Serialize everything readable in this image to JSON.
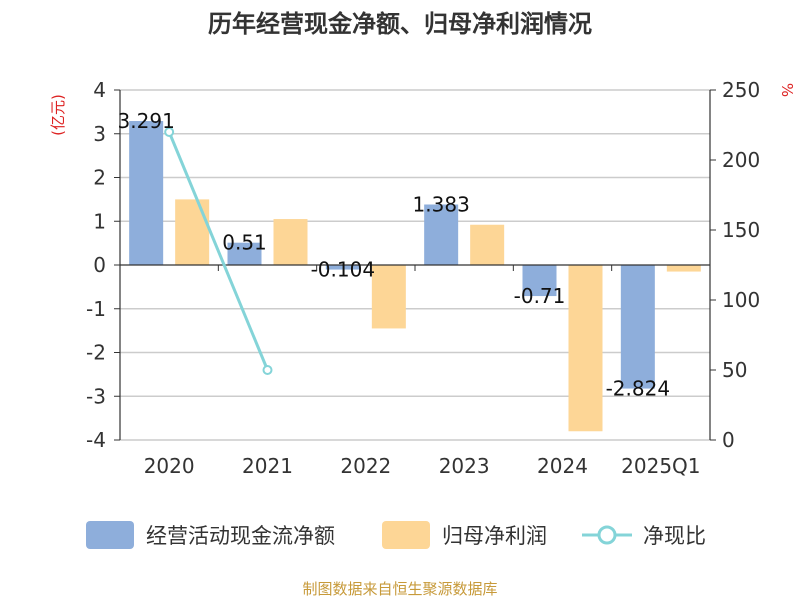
{
  "chart_data": {
    "type": "bar",
    "title": "历年经营现金净额、归母净利润情况",
    "categories": [
      "2020",
      "2021",
      "2022",
      "2023",
      "2024",
      "2025Q1"
    ],
    "y_left": {
      "label": "(亿元)",
      "min": -4,
      "max": 4,
      "ticks": [
        "4",
        "3",
        "2",
        "1",
        "0",
        "-1",
        "-2",
        "-3",
        "-4"
      ]
    },
    "y_right": {
      "label": "%",
      "min": 0,
      "max": 250,
      "ticks": [
        "250",
        "200",
        "150",
        "100",
        "50",
        "0"
      ]
    },
    "series": [
      {
        "name": "经营活动现金流净额",
        "type": "bar",
        "color": "#8eaedb",
        "values": [
          3.291,
          0.51,
          -0.104,
          1.383,
          -0.71,
          -2.824
        ],
        "labels": [
          "3.291",
          "0.51",
          "-0.104",
          "1.383",
          "-0.71",
          "-2.824"
        ]
      },
      {
        "name": "归母净利润",
        "type": "bar",
        "color": "#fdd696",
        "values": [
          1.5,
          1.05,
          -1.45,
          0.92,
          -3.8,
          -0.15
        ]
      },
      {
        "name": "净现比",
        "type": "line",
        "color": "#84d4d8",
        "axis": "right",
        "values": [
          220,
          50,
          null,
          null,
          null,
          null
        ]
      }
    ],
    "grid": true,
    "legend": "bottom",
    "source": "制图数据来自恒生聚源数据库"
  }
}
